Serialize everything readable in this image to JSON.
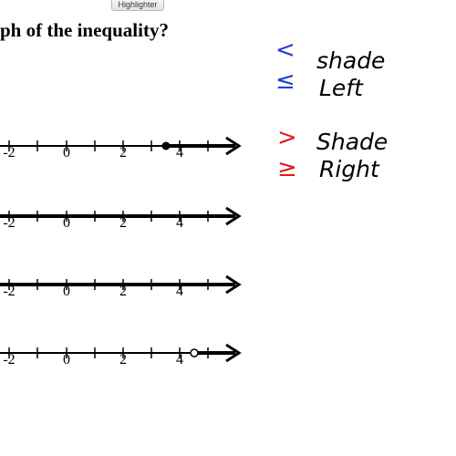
{
  "toolbar": {
    "highlighter_label": "Highlighter"
  },
  "question": {
    "text": "ph of the inequality?"
  },
  "number_lines": [
    {
      "ticks": [
        "-2",
        "0",
        "2",
        "4"
      ],
      "endpoint": "closed",
      "endpoint_value": 3.5,
      "shade": "right"
    },
    {
      "ticks": [
        "-2",
        "0",
        "2",
        "4"
      ],
      "endpoint": "none",
      "shade": "all"
    },
    {
      "ticks": [
        "-2",
        "0",
        "2",
        "4"
      ],
      "endpoint": "none",
      "shade": "all"
    },
    {
      "ticks": [
        "-2",
        "0",
        "2",
        "4"
      ],
      "endpoint": "open",
      "endpoint_value": 4.5,
      "shade": "right"
    }
  ],
  "notes": {
    "less_than": "<",
    "less_equal": "≤",
    "shade_left_1": "shade",
    "shade_left_2": "Left",
    "greater_than": ">",
    "greater_equal": "≥",
    "shade_right_1": "Shade",
    "shade_right_2": "Right",
    "less_color": "#1f3fd6",
    "greater_color": "#e11d1d"
  }
}
